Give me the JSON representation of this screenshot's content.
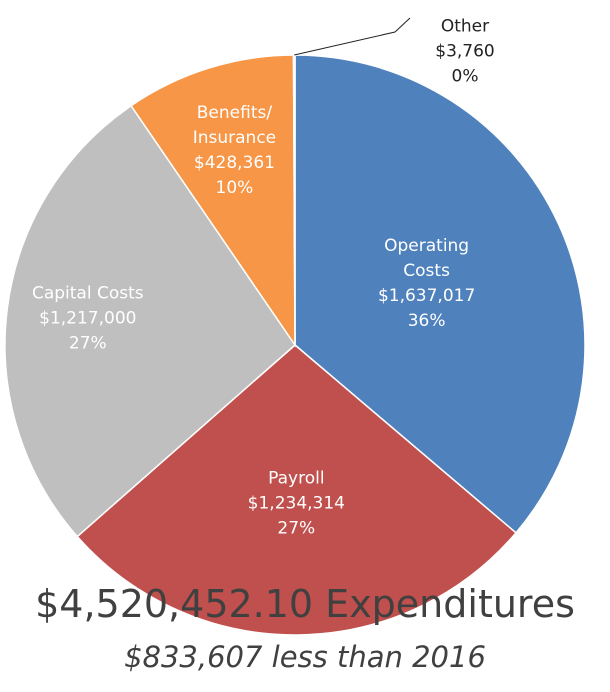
{
  "chart_data": {
    "type": "pie",
    "title": "$4,520,452.10 Expenditures",
    "subtitle": "$833,607 less than 2016",
    "categories": [
      "Operating Costs",
      "Payroll",
      "Capital Costs",
      "Benefits/ Insurance",
      "Other"
    ],
    "values": [
      1637017,
      1234314,
      1217000,
      428361,
      3760
    ],
    "value_labels": [
      "$1,637,017",
      "$1,234,314",
      "$1,217,000",
      "$428,361",
      "$3,760"
    ],
    "percent_labels": [
      "36%",
      "27%",
      "27%",
      "10%",
      "0%"
    ],
    "colors": [
      "#4f81bd",
      "#c0504d",
      "#bfbfbf",
      "#f79646",
      "#9bbb59"
    ]
  }
}
